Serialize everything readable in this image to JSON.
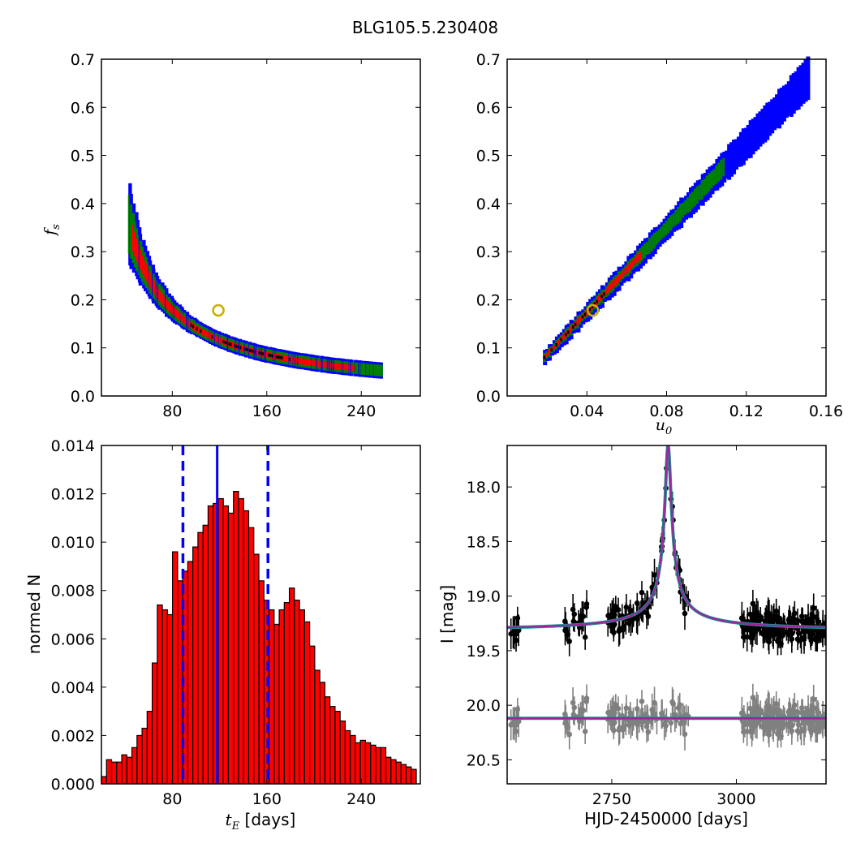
{
  "title": "BLG105.5.230408",
  "colors": {
    "blue": "#0000ff",
    "green": "#008000",
    "red": "#ff0000",
    "black": "#000000",
    "gold": "#c8b000",
    "magenta": "#a020a0",
    "teal": "#1f8f8f",
    "gray": "#808080"
  },
  "panels": {
    "tl": {
      "ylabel": "f",
      "ylabel_sub": "s",
      "xticks": [
        80,
        160,
        240
      ],
      "yticks": [
        0.0,
        0.1,
        0.2,
        0.3,
        0.4,
        0.5,
        0.6,
        0.7
      ],
      "ytick_labels": [
        "0.0",
        "0.1",
        "0.2",
        "0.3",
        "0.4",
        "0.5",
        "0.6",
        "0.7"
      ],
      "xtick_labels": [
        "80",
        "160",
        "240"
      ]
    },
    "tr": {
      "xlabel": "u",
      "xlabel_sub": "0",
      "xticks": [
        0.04,
        0.08,
        0.12,
        0.16
      ],
      "xtick_labels": [
        "0.04",
        "0.08",
        "0.12",
        "0.16"
      ],
      "ytick_labels": [
        "0.0",
        "0.1",
        "0.2",
        "0.3",
        "0.4",
        "0.5",
        "0.6",
        "0.7"
      ]
    },
    "bl": {
      "xlabel_main": "t",
      "xlabel_sub": "E",
      "xlabel_unit": " [days]",
      "ylabel": "normed N",
      "xtick_labels": [
        "80",
        "160",
        "240"
      ],
      "ytick_labels": [
        "0.000",
        "0.002",
        "0.004",
        "0.006",
        "0.008",
        "0.010",
        "0.012",
        "0.014"
      ]
    },
    "br": {
      "xlabel": "HJD-2450000 [days]",
      "ylabel": "I [mag]",
      "xtick_labels": [
        "2750",
        "3000"
      ],
      "ytick_labels": [
        "18.0",
        "18.5",
        "19.0",
        "19.5",
        "20.0",
        "20.5"
      ]
    }
  },
  "chart_data": [
    {
      "type": "heatmap",
      "panel": "tl",
      "description_of_axes": "t_E (days) vs f_s",
      "xlim": [
        20,
        290
      ],
      "ylim": [
        0.0,
        0.7
      ],
      "curve": {
        "A": 13.2,
        "B": 7.0,
        "t_range": [
          44,
          258
        ]
      },
      "marker": {
        "x": 119,
        "y": 0.178
      }
    },
    {
      "type": "heatmap",
      "panel": "tr",
      "xlim": [
        0.0,
        0.16
      ],
      "ylim": [
        0.0,
        0.7
      ],
      "line": {
        "u0_range": [
          0.019,
          0.152
        ],
        "fs_at_start": 0.08,
        "fs_at_end": 0.665
      },
      "marker": {
        "x": 0.043,
        "y": 0.178
      }
    },
    {
      "type": "bar",
      "panel": "bl",
      "xlim": [
        20,
        290
      ],
      "ylim": [
        0.0,
        0.014
      ],
      "bin_start": 20,
      "bin_width": 4.3,
      "values": [
        0.0003,
        0.001,
        0.0009,
        0.0009,
        0.0012,
        0.0011,
        0.0015,
        0.002,
        0.0023,
        0.003,
        0.005,
        0.0074,
        0.0072,
        0.007,
        0.0096,
        0.0084,
        0.0088,
        0.0092,
        0.0098,
        0.0104,
        0.0107,
        0.0115,
        0.0116,
        0.0118,
        0.0115,
        0.0112,
        0.0121,
        0.0118,
        0.0113,
        0.0106,
        0.0095,
        0.0084,
        0.0076,
        0.0072,
        0.0066,
        0.0072,
        0.0075,
        0.0081,
        0.0076,
        0.0072,
        0.0067,
        0.0057,
        0.0047,
        0.0042,
        0.0036,
        0.0032,
        0.003,
        0.0026,
        0.0022,
        0.002,
        0.0017,
        0.0018,
        0.0017,
        0.0016,
        0.0015,
        0.0015,
        0.0011,
        0.001,
        0.0009,
        0.0008,
        0.0007,
        0.0006,
        0.0005,
        0.0005,
        0.0004,
        0.0003,
        0.0002,
        0.0001
      ],
      "median": 118,
      "lower": 89,
      "upper": 161
    },
    {
      "type": "scatter",
      "panel": "br",
      "xlim": [
        2540,
        3180
      ],
      "ylim": [
        20.72,
        17.62
      ],
      "model": {
        "t0": 2863,
        "baseline": 19.32,
        "peak": 17.62,
        "width": 11
      },
      "residual_baseline": 20.12
    }
  ]
}
